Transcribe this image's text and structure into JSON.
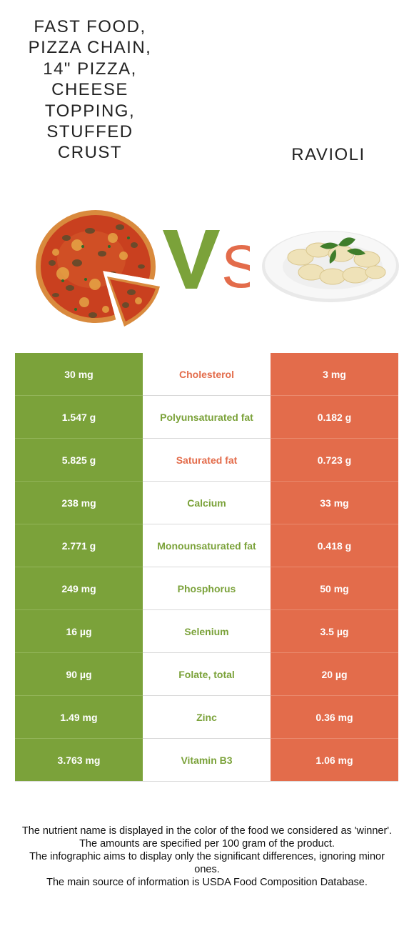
{
  "header": {
    "left_title": "Fast food, Pizza chain, 14\" pizza, cheese topping, stuffed crust",
    "right_title": "Ravioli",
    "vs_text": "VS"
  },
  "colors": {
    "left_food": "#7ba23a",
    "right_food": "#e36c4b"
  },
  "images": {
    "left": "pizza-image",
    "right": "ravioli-plate-image"
  },
  "rows": [
    {
      "left": "30 mg",
      "nutrient": "Cholesterol",
      "right": "3 mg",
      "winner": "right"
    },
    {
      "left": "1.547 g",
      "nutrient": "Polyunsaturated fat",
      "right": "0.182 g",
      "winner": "left"
    },
    {
      "left": "5.825 g",
      "nutrient": "Saturated fat",
      "right": "0.723 g",
      "winner": "right"
    },
    {
      "left": "238 mg",
      "nutrient": "Calcium",
      "right": "33 mg",
      "winner": "left"
    },
    {
      "left": "2.771 g",
      "nutrient": "Monounsaturated fat",
      "right": "0.418 g",
      "winner": "left"
    },
    {
      "left": "249 mg",
      "nutrient": "Phosphorus",
      "right": "50 mg",
      "winner": "left"
    },
    {
      "left": "16 µg",
      "nutrient": "Selenium",
      "right": "3.5 µg",
      "winner": "left"
    },
    {
      "left": "90 µg",
      "nutrient": "Folate, total",
      "right": "20 µg",
      "winner": "left"
    },
    {
      "left": "1.49 mg",
      "nutrient": "Zinc",
      "right": "0.36 mg",
      "winner": "left"
    },
    {
      "left": "3.763 mg",
      "nutrient": "Vitamin B3",
      "right": "1.06 mg",
      "winner": "left"
    }
  ],
  "footer": [
    "The nutrient name is displayed in the color of the food we considered as 'winner'.",
    "The amounts are specified per 100 gram of the product.",
    "The infographic aims to display only the significant differences, ignoring minor ones.",
    "The main source of information is USDA Food Composition Database."
  ]
}
